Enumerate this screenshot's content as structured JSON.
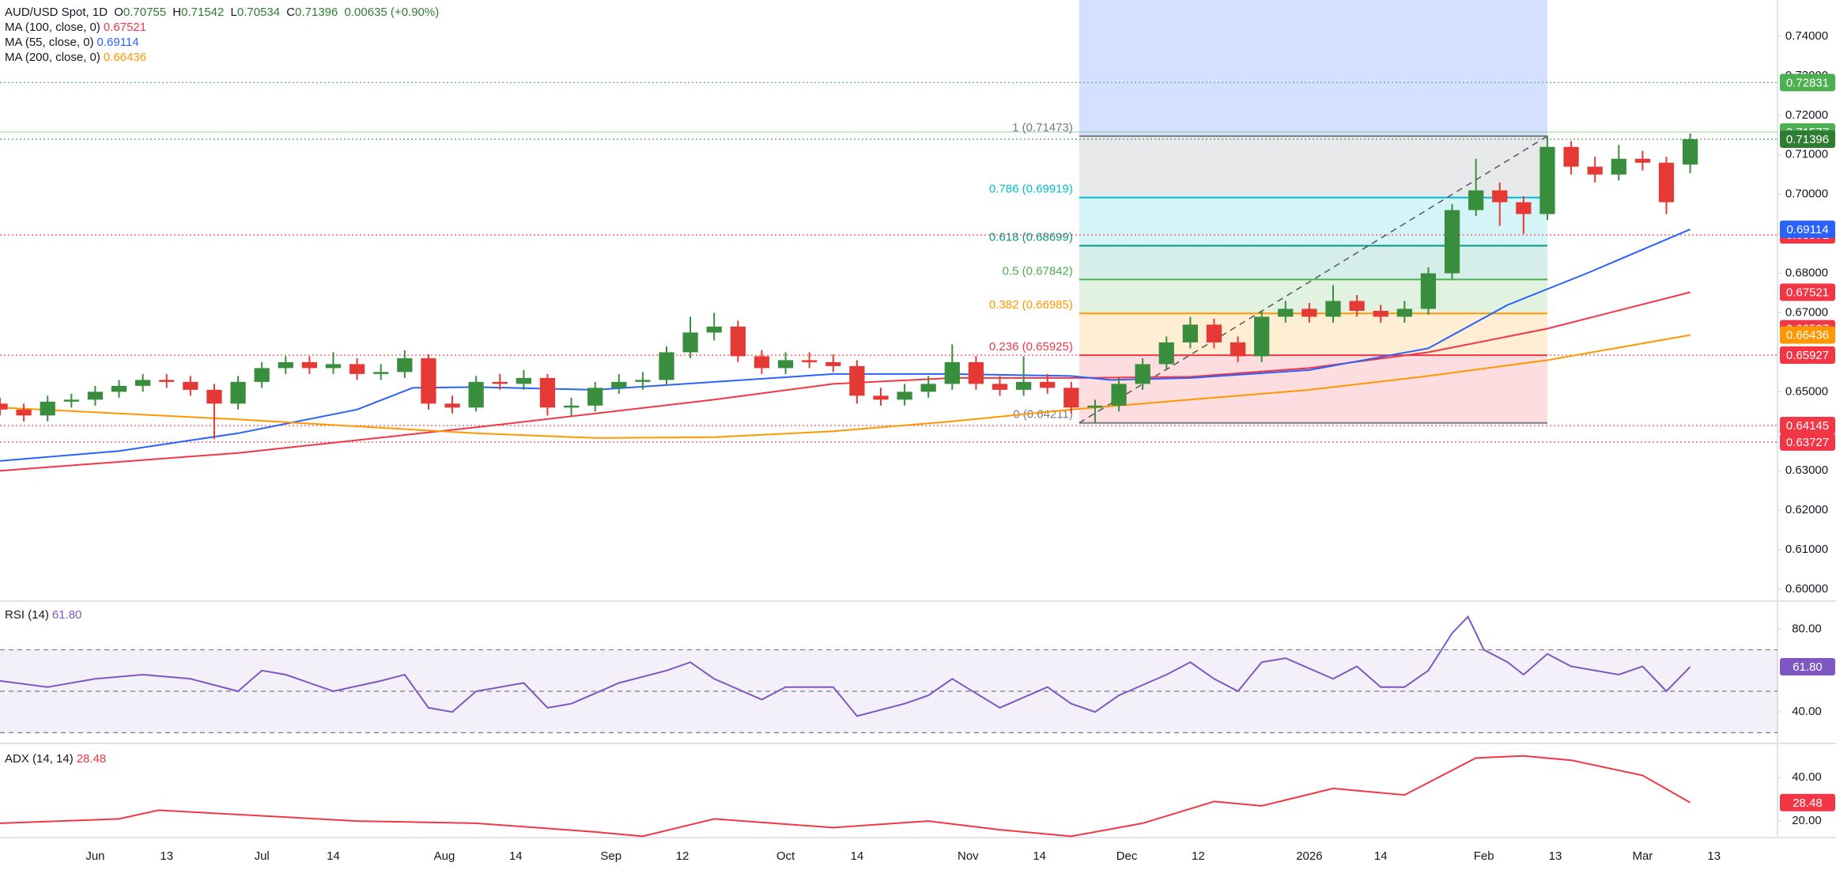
{
  "chart_data": [
    {
      "type": "candlestick",
      "title": "AUD/USD Spot, 1D",
      "ohlc_labels": [
        "O",
        "H",
        "L",
        "C"
      ],
      "change_label": "0.00635 (+0.90%)",
      "up_color": "#388e3c",
      "down_color": "#e53935",
      "xlim": [
        0,
        224
      ],
      "xticks": [
        {
          "value": 12,
          "label": "Jun"
        },
        {
          "value": 21,
          "label": "13"
        },
        {
          "value": 33,
          "label": "Jul"
        },
        {
          "value": 42,
          "label": "14"
        },
        {
          "value": 56,
          "label": "Aug"
        },
        {
          "value": 65,
          "label": "14"
        },
        {
          "value": 77,
          "label": "Sep"
        },
        {
          "value": 86,
          "label": "12"
        },
        {
          "value": 99,
          "label": "Oct"
        },
        {
          "value": 108,
          "label": "14"
        },
        {
          "value": 122,
          "label": "Nov"
        },
        {
          "value": 131,
          "label": "14"
        },
        {
          "value": 142,
          "label": "Dec"
        },
        {
          "value": 151,
          "label": "12"
        },
        {
          "value": 165,
          "label": "2026"
        },
        {
          "value": 174,
          "label": "14"
        },
        {
          "value": 187,
          "label": "Feb"
        },
        {
          "value": 196,
          "label": "13"
        },
        {
          "value": 207,
          "label": "Mar"
        },
        {
          "value": 216,
          "label": "13"
        }
      ],
      "ylim": [
        0.597,
        0.7492
      ],
      "yticks": [
        {
          "value": 0.6,
          "label": "0.60000"
        },
        {
          "value": 0.61,
          "label": "0.61000"
        },
        {
          "value": 0.62,
          "label": "0.62000"
        },
        {
          "value": 0.63,
          "label": "0.63000"
        },
        {
          "value": 0.64,
          "label": "0.64000"
        },
        {
          "value": 0.65,
          "label": "0.65000"
        },
        {
          "value": 0.66,
          "label": "0.66000"
        },
        {
          "value": 0.67,
          "label": "0.67000"
        },
        {
          "value": 0.68,
          "label": "0.68000"
        },
        {
          "value": 0.69,
          "label": "0.69000"
        },
        {
          "value": 0.7,
          "label": "0.70000"
        },
        {
          "value": 0.71,
          "label": "0.71000"
        },
        {
          "value": 0.72,
          "label": "0.72000"
        },
        {
          "value": 0.73,
          "label": "0.73000"
        },
        {
          "value": 0.74,
          "label": "0.74000"
        }
      ],
      "x": [
        0,
        3,
        6,
        9,
        12,
        15,
        18,
        21,
        24,
        27,
        30,
        33,
        36,
        39,
        42,
        45,
        48,
        51,
        54,
        57,
        60,
        63,
        66,
        69,
        72,
        75,
        78,
        81,
        84,
        87,
        90,
        93,
        96,
        99,
        102,
        105,
        108,
        111,
        114,
        117,
        120,
        123,
        126,
        129,
        132,
        135,
        138,
        141,
        144,
        147,
        150,
        153,
        156,
        159,
        162,
        165,
        168,
        171,
        174,
        177,
        180,
        183,
        186,
        189,
        192,
        195,
        198,
        201,
        204,
        207,
        210,
        213
      ],
      "open": [
        0.647,
        0.6455,
        0.644,
        0.6475,
        0.648,
        0.65,
        0.6515,
        0.653,
        0.6525,
        0.6505,
        0.647,
        0.6525,
        0.656,
        0.6575,
        0.656,
        0.657,
        0.6545,
        0.655,
        0.6585,
        0.647,
        0.646,
        0.6525,
        0.652,
        0.6535,
        0.646,
        0.6465,
        0.651,
        0.6525,
        0.653,
        0.66,
        0.665,
        0.6665,
        0.659,
        0.656,
        0.658,
        0.6575,
        0.6565,
        0.649,
        0.648,
        0.65,
        0.652,
        0.6575,
        0.652,
        0.6505,
        0.6525,
        0.651,
        0.646,
        0.6465,
        0.652,
        0.657,
        0.6625,
        0.667,
        0.6625,
        0.659,
        0.669,
        0.671,
        0.669,
        0.673,
        0.6705,
        0.669,
        0.671,
        0.68,
        0.696,
        0.701,
        0.698,
        0.695,
        0.712,
        0.707,
        0.705,
        0.709,
        0.708,
        0.70755
      ],
      "high": [
        0.6485,
        0.647,
        0.649,
        0.6495,
        0.6515,
        0.653,
        0.6545,
        0.6545,
        0.654,
        0.652,
        0.654,
        0.6575,
        0.659,
        0.659,
        0.66,
        0.6585,
        0.657,
        0.6605,
        0.6595,
        0.649,
        0.654,
        0.6545,
        0.6555,
        0.6545,
        0.6485,
        0.6525,
        0.6545,
        0.655,
        0.6615,
        0.669,
        0.67,
        0.668,
        0.6605,
        0.66,
        0.66,
        0.6595,
        0.658,
        0.651,
        0.652,
        0.654,
        0.662,
        0.659,
        0.654,
        0.659,
        0.6545,
        0.6525,
        0.648,
        0.6535,
        0.6585,
        0.664,
        0.669,
        0.6685,
        0.664,
        0.6705,
        0.673,
        0.6725,
        0.677,
        0.6745,
        0.672,
        0.673,
        0.6815,
        0.6975,
        0.709,
        0.703,
        0.6995,
        0.7147,
        0.7135,
        0.7095,
        0.7125,
        0.711,
        0.7095,
        0.71542
      ],
      "low": [
        0.644,
        0.6425,
        0.6425,
        0.646,
        0.6465,
        0.6485,
        0.65,
        0.651,
        0.649,
        0.638,
        0.6455,
        0.651,
        0.6545,
        0.6545,
        0.6545,
        0.653,
        0.653,
        0.6535,
        0.6455,
        0.6445,
        0.645,
        0.6505,
        0.6505,
        0.644,
        0.644,
        0.645,
        0.6495,
        0.6505,
        0.6515,
        0.6585,
        0.663,
        0.6575,
        0.6545,
        0.6545,
        0.656,
        0.655,
        0.647,
        0.6465,
        0.6465,
        0.6485,
        0.6505,
        0.6505,
        0.649,
        0.649,
        0.6495,
        0.6445,
        0.6421,
        0.645,
        0.6505,
        0.6555,
        0.661,
        0.661,
        0.6575,
        0.6575,
        0.6675,
        0.6675,
        0.6675,
        0.669,
        0.6675,
        0.6675,
        0.6695,
        0.6785,
        0.6945,
        0.692,
        0.69,
        0.6935,
        0.705,
        0.703,
        0.7035,
        0.706,
        0.695,
        0.70534
      ],
      "close": [
        0.6455,
        0.644,
        0.6475,
        0.648,
        0.65,
        0.6515,
        0.653,
        0.6525,
        0.6505,
        0.647,
        0.6525,
        0.656,
        0.6575,
        0.656,
        0.657,
        0.6545,
        0.655,
        0.6585,
        0.647,
        0.646,
        0.6525,
        0.652,
        0.6535,
        0.646,
        0.6465,
        0.651,
        0.6525,
        0.653,
        0.66,
        0.665,
        0.6665,
        0.659,
        0.656,
        0.658,
        0.6575,
        0.6565,
        0.649,
        0.648,
        0.65,
        0.652,
        0.6575,
        0.652,
        0.6505,
        0.6525,
        0.651,
        0.646,
        0.6465,
        0.652,
        0.657,
        0.6625,
        0.667,
        0.6625,
        0.659,
        0.669,
        0.671,
        0.669,
        0.673,
        0.6705,
        0.669,
        0.671,
        0.68,
        0.696,
        0.701,
        0.698,
        0.695,
        0.712,
        0.707,
        0.705,
        0.709,
        0.708,
        0.698,
        0.71396
      ],
      "close_color": "#2e7d32",
      "series": [
        {
          "name": "MA (100, close, 0)",
          "color": "#f23645",
          "x": [
            0,
            30,
            60,
            90,
            105,
            120,
            135,
            150,
            165,
            180,
            195,
            213
          ],
          "values": [
            0.63,
            0.6345,
            0.641,
            0.648,
            0.652,
            0.6535,
            0.6535,
            0.6538,
            0.656,
            0.66,
            0.666,
            0.67521
          ]
        },
        {
          "name": "MA (55, close, 0)",
          "color": "#2962ff",
          "x": [
            0,
            15,
            30,
            45,
            52,
            60,
            75,
            90,
            105,
            120,
            135,
            140,
            150,
            165,
            180,
            190,
            200,
            213
          ],
          "values": [
            0.6325,
            0.635,
            0.6395,
            0.6455,
            0.651,
            0.6512,
            0.6505,
            0.6525,
            0.6545,
            0.6545,
            0.654,
            0.653,
            0.6535,
            0.6555,
            0.661,
            0.672,
            0.68,
            0.69114
          ]
        },
        {
          "name": "MA (200, close, 0)",
          "color": "#ff9800",
          "x": [
            0,
            30,
            60,
            75,
            90,
            105,
            120,
            135,
            150,
            165,
            180,
            195,
            213
          ],
          "values": [
            0.646,
            0.643,
            0.6395,
            0.6383,
            0.6385,
            0.64,
            0.6425,
            0.6455,
            0.648,
            0.6505,
            0.654,
            0.658,
            0.66436
          ]
        }
      ],
      "price_lines": [
        {
          "value": 0.72831,
          "color": "#4caf50",
          "style": "dotted"
        },
        {
          "value": 0.71577,
          "color": "#4caf50",
          "style": "solid"
        },
        {
          "value": 0.68971,
          "color": "#f23645",
          "style": "dotted"
        },
        {
          "value": 0.66597,
          "color": "#f23645",
          "style": "none"
        },
        {
          "value": 0.65927,
          "color": "#f23645",
          "style": "dotted"
        },
        {
          "value": 0.64145,
          "color": "#f23645",
          "style": "dotted"
        },
        {
          "value": 0.63727,
          "color": "#f23645",
          "style": "dotted"
        }
      ],
      "fib": {
        "x_start": 136,
        "x_end": 195,
        "highlight_color": "#2962ff",
        "levels": [
          {
            "value": 0.71473,
            "label": "1 (0.71473)",
            "color": "#787b86"
          },
          {
            "value": 0.69919,
            "label": "0.786 (0.69919)",
            "color": "#00bcd4"
          },
          {
            "value": 0.68699,
            "label": "0.618 (0.68699)",
            "color": "#089981"
          },
          {
            "value": 0.67842,
            "label": "0.5 (0.67842)",
            "color": "#4caf50"
          },
          {
            "value": 0.66985,
            "label": "0.382 (0.66985)",
            "color": "#ff9800"
          },
          {
            "value": 0.65925,
            "label": "0.236 (0.65925)",
            "color": "#f23645"
          },
          {
            "value": 0.64211,
            "label": "0 (0.64211)",
            "color": "#787b86"
          }
        ]
      }
    },
    {
      "type": "line",
      "title": "RSI (14)",
      "color": "#7e57c2",
      "ylim": [
        24.8,
        93.5
      ],
      "yticks": [
        {
          "value": 80,
          "label": "80.00"
        },
        {
          "value": 40,
          "label": "40.00"
        }
      ],
      "reference_lines": [
        70,
        50,
        30
      ],
      "x": [
        0,
        6,
        12,
        18,
        24,
        30,
        33,
        36,
        42,
        48,
        51,
        54,
        57,
        60,
        66,
        69,
        72,
        78,
        84,
        87,
        90,
        96,
        99,
        105,
        108,
        114,
        117,
        120,
        126,
        132,
        135,
        138,
        141,
        147,
        150,
        153,
        156,
        159,
        162,
        168,
        171,
        174,
        177,
        180,
        183,
        185,
        187,
        190,
        192,
        195,
        198,
        204,
        207,
        210,
        213
      ],
      "values": [
        55,
        52,
        56,
        58,
        56,
        50,
        60,
        58,
        50,
        55,
        58,
        42,
        40,
        50,
        54,
        42,
        44,
        54,
        60,
        64,
        56,
        46,
        52,
        52,
        38,
        44,
        48,
        56,
        42,
        52,
        44,
        40,
        48,
        58,
        64,
        56,
        50,
        64,
        66,
        56,
        62,
        52,
        52,
        60,
        78,
        86,
        70,
        64,
        58,
        68,
        62,
        58,
        62,
        50,
        61.8
      ],
      "value_labels": [
        null,
        null,
        null,
        null,
        null,
        null,
        null,
        null,
        null,
        null,
        null,
        null,
        null,
        null,
        null,
        null,
        null,
        null,
        null,
        null,
        null,
        null,
        null,
        null,
        null,
        null,
        null,
        null,
        null,
        null,
        null,
        null,
        null,
        null,
        null,
        null,
        null,
        null,
        null,
        null,
        null,
        null,
        null,
        null,
        null,
        null,
        null,
        null,
        null,
        null,
        null,
        null,
        null,
        null,
        "61.80"
      ]
    },
    {
      "type": "line",
      "title": "ADX (14, 14)",
      "color": "#f23645",
      "ylim": [
        12.4,
        55.7
      ],
      "yticks": [
        {
          "value": 40,
          "label": "40.00"
        },
        {
          "value": 20,
          "label": "20.00"
        }
      ],
      "x": [
        0,
        15,
        20,
        30,
        45,
        60,
        75,
        81,
        90,
        105,
        117,
        126,
        135,
        144,
        153,
        159,
        168,
        177,
        186,
        192,
        198,
        207,
        213
      ],
      "values": [
        19,
        21,
        25,
        23,
        20,
        19,
        15,
        13,
        21,
        17,
        20,
        16,
        13,
        19,
        29,
        27,
        35,
        32,
        49,
        50,
        48,
        41,
        28.48
      ]
    }
  ]
}
